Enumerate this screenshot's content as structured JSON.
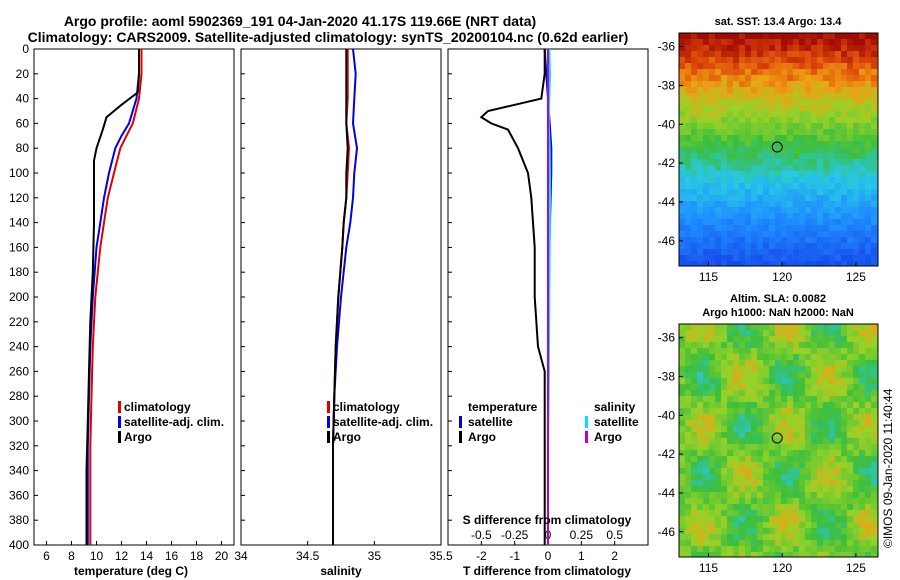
{
  "header": {
    "title_line1": "Argo profile: aoml 5902369_191 04-Jan-2020 41.17S 119.66E (NRT data)",
    "title_line2": "Climatology: CARS2009. Satellite-adjusted climatology: synTS_20200104.nc (0.62d earlier)"
  },
  "footer": {
    "credit": "©IMOS 09-Jan-2020 11:40:44"
  },
  "colors": {
    "red": "#e00000",
    "blue": "#0000e0",
    "black": "#000000",
    "cyan": "#00e5ff",
    "magenta": "#c000c0"
  },
  "chart_data": [
    {
      "type": "line",
      "name": "temperature",
      "xlabel": "temperature (deg C)",
      "ylabel": "",
      "xlim": [
        5,
        21
      ],
      "ylim": [
        400,
        0
      ],
      "xticks": [
        "6",
        "8",
        "10",
        "12",
        "14",
        "16",
        "18",
        "20"
      ],
      "xtick_values": [
        6,
        8,
        10,
        12,
        14,
        16,
        18,
        20
      ],
      "yticks": [
        "0",
        "20",
        "40",
        "60",
        "80",
        "100",
        "120",
        "140",
        "160",
        "180",
        "200",
        "220",
        "240",
        "260",
        "280",
        "300",
        "320",
        "340",
        "360",
        "380",
        "400"
      ],
      "ytick_values": [
        0,
        20,
        40,
        60,
        80,
        100,
        120,
        140,
        160,
        180,
        200,
        220,
        240,
        260,
        280,
        300,
        320,
        340,
        360,
        380,
        400
      ],
      "legend": [
        "climatology",
        "satellite-adj. clim.",
        "Argo"
      ],
      "series": [
        {
          "name": "climatology",
          "color": "#e00000",
          "depth": [
            0,
            20,
            40,
            60,
            70,
            80,
            100,
            120,
            140,
            160,
            200,
            240,
            280,
            320,
            360,
            400
          ],
          "values": [
            13.6,
            13.6,
            13.4,
            12.9,
            12.4,
            11.9,
            11.4,
            10.9,
            10.6,
            10.3,
            9.9,
            9.7,
            9.6,
            9.5,
            9.5,
            9.5
          ]
        },
        {
          "name": "satellite-adj. clim.",
          "color": "#0000e0",
          "depth": [
            0,
            20,
            40,
            60,
            70,
            80,
            100,
            120,
            140,
            160,
            200,
            240,
            280,
            320,
            360,
            400
          ],
          "values": [
            13.4,
            13.4,
            13.2,
            12.6,
            12.0,
            11.5,
            11.0,
            10.6,
            10.3,
            10.0,
            9.7,
            9.5,
            9.4,
            9.3,
            9.3,
            9.3
          ]
        },
        {
          "name": "Argo",
          "color": "#000000",
          "depth": [
            0,
            20,
            35,
            45,
            50,
            55,
            65,
            80,
            90,
            100,
            140,
            180,
            220,
            260,
            300,
            340,
            380,
            400
          ],
          "values": [
            13.4,
            13.4,
            13.3,
            12.0,
            11.4,
            10.8,
            10.5,
            10.0,
            9.8,
            9.8,
            9.8,
            9.7,
            9.5,
            9.4,
            9.3,
            9.2,
            9.2,
            9.2
          ]
        }
      ]
    },
    {
      "type": "line",
      "name": "salinity",
      "xlabel": "salinity",
      "ylabel": "",
      "xlim": [
        34,
        35.5
      ],
      "ylim": [
        400,
        0
      ],
      "xticks": [
        "34",
        "34.5",
        "35",
        "35.5"
      ],
      "xtick_values": [
        34,
        34.5,
        35,
        35.5
      ],
      "legend": [
        "climatology",
        "satellite-adj. clim.",
        "Argo"
      ],
      "series": [
        {
          "name": "climatology",
          "color": "#e00000",
          "depth": [
            0,
            20,
            40,
            60,
            80,
            100,
            120,
            140,
            160,
            200,
            240,
            280,
            320,
            360,
            400
          ],
          "values": [
            34.8,
            34.8,
            34.8,
            34.79,
            34.81,
            34.8,
            34.79,
            34.77,
            34.76,
            34.73,
            34.71,
            34.7,
            34.69,
            34.69,
            34.69
          ]
        },
        {
          "name": "satellite-adj. clim.",
          "color": "#0000e0",
          "depth": [
            0,
            20,
            40,
            60,
            80,
            100,
            120,
            140,
            160,
            200,
            240,
            280,
            320,
            360,
            400
          ],
          "values": [
            34.84,
            34.86,
            34.85,
            34.84,
            34.87,
            34.85,
            34.84,
            34.82,
            34.79,
            34.75,
            34.72,
            34.7,
            34.69,
            34.69,
            34.69
          ]
        },
        {
          "name": "Argo",
          "color": "#000000",
          "depth": [
            0,
            20,
            40,
            60,
            80,
            100,
            120,
            140,
            160,
            200,
            240,
            280,
            320,
            360,
            400
          ],
          "values": [
            34.79,
            34.79,
            34.79,
            34.79,
            34.8,
            34.79,
            34.79,
            34.77,
            34.76,
            34.73,
            34.71,
            34.7,
            34.69,
            34.69,
            34.69
          ]
        }
      ]
    },
    {
      "type": "line",
      "name": "difference",
      "xlabel": "T difference from climatology",
      "xlabel2": "S difference from climatology",
      "xlim": [
        -3,
        3
      ],
      "ylim": [
        400,
        0
      ],
      "xticks": [
        "-2",
        "-1",
        "0",
        "1",
        "2"
      ],
      "xtick_values": [
        -2,
        -1,
        0,
        1,
        2
      ],
      "sticks": [
        "-0.5",
        "-0.25",
        "0",
        "0.25",
        "0.5"
      ],
      "stick_values": [
        -0.5,
        -0.25,
        0,
        0.25,
        0.5
      ],
      "stick_scale": 4,
      "legend_temperature": [
        "temperature",
        "satellite",
        "Argo"
      ],
      "legend_salinity": [
        "salinity",
        "satellite",
        "Argo"
      ],
      "series": [
        {
          "name": "temperature satellite",
          "color": "#0000e0",
          "depth": [
            0,
            20,
            40,
            60,
            80,
            100,
            200,
            300,
            400
          ],
          "values": [
            -0.1,
            -0.05,
            0.0,
            0.05,
            0.1,
            0.1,
            0.0,
            0.0,
            0.0
          ]
        },
        {
          "name": "temperature Argo",
          "color": "#000000",
          "depth": [
            0,
            20,
            40,
            45,
            50,
            55,
            60,
            65,
            80,
            100,
            120,
            160,
            200,
            240,
            260,
            280,
            300,
            320,
            360,
            400
          ],
          "values": [
            -0.1,
            -0.1,
            -0.2,
            -1.0,
            -1.8,
            -2.0,
            -1.7,
            -1.2,
            -0.9,
            -0.6,
            -0.5,
            -0.4,
            -0.4,
            -0.3,
            -0.1,
            -0.1,
            -0.1,
            -0.1,
            -0.1,
            -0.1
          ]
        },
        {
          "name": "salinity satellite",
          "color": "#00e5ff",
          "depth": [
            0,
            20,
            40,
            60,
            80,
            100,
            120,
            160,
            200,
            240,
            280,
            320,
            360,
            400
          ],
          "values": [
            0.04,
            0.06,
            0.04,
            0.02,
            0.05,
            0.06,
            0.06,
            0.05,
            0.04,
            0.03,
            0.02,
            0.0,
            0.0,
            0.0
          ]
        },
        {
          "name": "salinity Argo",
          "color": "#c000c0",
          "depth": [
            0,
            100,
            200,
            300,
            400
          ],
          "values": [
            0.0,
            0.0,
            0.0,
            0.0,
            0.0
          ]
        }
      ]
    },
    {
      "type": "heatmap",
      "name": "sst-map",
      "title": "sat. SST: 13.4 Argo: 13.4",
      "xticks": [
        "115",
        "120",
        "125"
      ],
      "xtick_values": [
        115,
        120,
        125
      ],
      "yticks": [
        "-36",
        "-38",
        "-40",
        "-42",
        "-44",
        "-46"
      ],
      "ytick_values": [
        -36,
        -38,
        -40,
        -42,
        -44,
        -46
      ],
      "xlim": [
        113,
        126.5
      ],
      "ylim": [
        -35.3,
        -47.3
      ],
      "argo_position": [
        119.66,
        -41.17
      ],
      "sst_value": 13.4,
      "argo_value": 13.4
    },
    {
      "type": "heatmap",
      "name": "sla-map",
      "title": "Altim. SLA: 0.0082",
      "subtitle": "Argo h1000: NaN h2000: NaN",
      "xticks": [
        "115",
        "120",
        "125"
      ],
      "xtick_values": [
        115,
        120,
        125
      ],
      "yticks": [
        "-36",
        "-38",
        "-40",
        "-42",
        "-44",
        "-46"
      ],
      "ytick_values": [
        -36,
        -38,
        -40,
        -42,
        -44,
        -46
      ],
      "xlim": [
        113,
        126.5
      ],
      "ylim": [
        -35.3,
        -47.3
      ],
      "argo_position": [
        119.66,
        -41.17
      ],
      "sla_value": 0.0082
    }
  ]
}
